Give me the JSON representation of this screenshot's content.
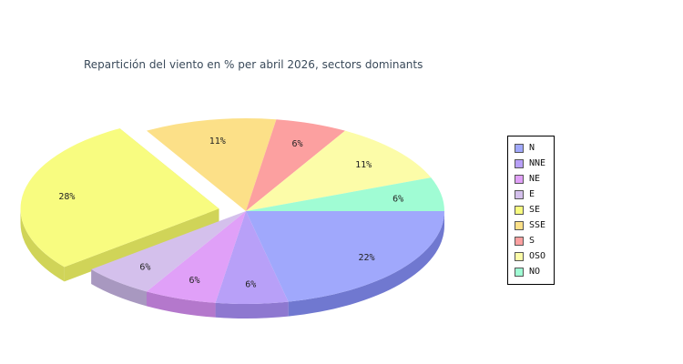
{
  "chart_data": {
    "type": "pie",
    "title": "Repartición del viento en % per abril 2026, sectors dominants",
    "categories": [
      "N",
      "NNE",
      "NE",
      "E",
      "SE",
      "SSE",
      "S",
      "OSO",
      "NO"
    ],
    "values": [
      22,
      6,
      6,
      6,
      28,
      11,
      6,
      11,
      6
    ],
    "value_labels": [
      "22%",
      "6%",
      "6%",
      "6%",
      "28%",
      "11%",
      "6%",
      "11%",
      "6%"
    ],
    "colors": [
      "#a0a8fc",
      "#b8a0f8",
      "#e0a0f8",
      "#d4c0ec",
      "#f8fc80",
      "#fce088",
      "#fca0a0",
      "#fcfca8",
      "#a0fcd4"
    ],
    "side_colors": [
      "#7078d0",
      "#8e78d0",
      "#b478cc",
      "#a898c0",
      "#d0d458",
      "#d0b460",
      "#d07878",
      "#d0d080",
      "#78d0aa"
    ],
    "exploded": "SE",
    "legend_position": "right",
    "style": "3d"
  }
}
